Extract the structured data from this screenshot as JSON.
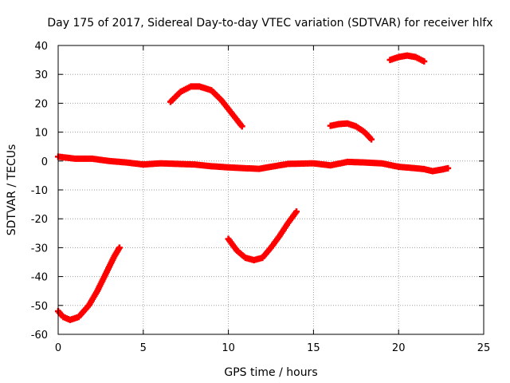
{
  "chart_data": {
    "type": "scatter",
    "title": "Day 175 of 2017, Sidereal Day-to-day VTEC variation (SDTVAR) for receiver hlfx",
    "xlabel": "GPS time / hours",
    "ylabel": "SDTVAR / TECUs",
    "xlim": [
      0,
      25
    ],
    "ylim": [
      -60,
      40
    ],
    "x_ticks": [
      "0",
      "5",
      "10",
      "15",
      "20",
      "25"
    ],
    "y_ticks": [
      "40",
      "30",
      "20",
      "10",
      "0",
      "-10",
      "-20",
      "-30",
      "-40",
      "-50",
      "-60"
    ],
    "grid": true,
    "marker": "plus",
    "color": "#ff0000",
    "series": [
      {
        "name": "main-trace",
        "x": [
          0,
          1,
          2,
          3,
          4,
          5,
          6,
          7,
          8,
          9,
          10,
          11,
          11.8,
          12.5,
          13.5,
          15,
          16,
          17,
          18,
          19,
          20,
          21,
          21.5,
          22,
          22.5,
          22.9
        ],
        "y": [
          1.5,
          0.8,
          0.8,
          0,
          -0.5,
          -1.2,
          -0.8,
          -1,
          -1.2,
          -1.8,
          -2.2,
          -2.5,
          -2.7,
          -2,
          -1,
          -0.8,
          -1.5,
          -0.3,
          -0.5,
          -0.8,
          -2,
          -2.5,
          -2.8,
          -3.5,
          -3,
          -2.5
        ]
      },
      {
        "name": "arc-1",
        "x": [
          0,
          0.3,
          0.7,
          1.2,
          1.8,
          2.3,
          2.8,
          3.3,
          3.6
        ],
        "y": [
          -52,
          -54,
          -55,
          -54,
          -50,
          -45,
          -39,
          -33,
          -30
        ]
      },
      {
        "name": "arc-2",
        "x": [
          6.6,
          7.2,
          7.8,
          8.3,
          9,
          9.6,
          10.2,
          10.8
        ],
        "y": [
          20.5,
          24,
          25.8,
          25.8,
          24.5,
          21,
          16.5,
          12
        ]
      },
      {
        "name": "arc-3",
        "x": [
          10,
          10.5,
          11,
          11.5,
          12,
          12.5,
          13,
          13.5,
          14
        ],
        "y": [
          -27,
          -31,
          -33.5,
          -34.3,
          -33.5,
          -30,
          -26,
          -21.5,
          -17.5
        ]
      },
      {
        "name": "arc-4",
        "x": [
          16,
          16.5,
          17,
          17.5,
          18,
          18.4
        ],
        "y": [
          12.2,
          12.8,
          13,
          12,
          10,
          7.5
        ]
      },
      {
        "name": "arc-5",
        "x": [
          19.5,
          20,
          20.5,
          21,
          21.5
        ],
        "y": [
          35,
          36,
          36.5,
          36,
          34.5
        ]
      }
    ]
  }
}
